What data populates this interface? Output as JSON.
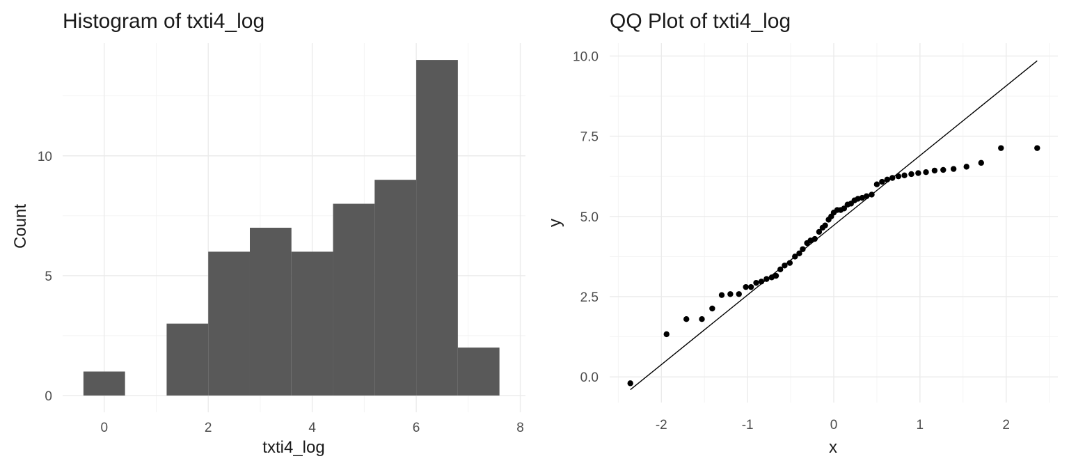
{
  "chart_data": [
    {
      "type": "bar",
      "title": "Histogram of txti4_log",
      "xlabel": "txti4_log",
      "ylabel": "Count",
      "bar_color": "#595959",
      "bins": [
        {
          "x0": -0.4,
          "x1": 0.4,
          "count": 1
        },
        {
          "x0": 1.2,
          "x1": 2.0,
          "count": 3
        },
        {
          "x0": 2.0,
          "x1": 2.8,
          "count": 6
        },
        {
          "x0": 2.8,
          "x1": 3.6,
          "count": 7
        },
        {
          "x0": 3.6,
          "x1": 4.4,
          "count": 6
        },
        {
          "x0": 4.4,
          "x1": 5.2,
          "count": 8
        },
        {
          "x0": 5.2,
          "x1": 6.0,
          "count": 9
        },
        {
          "x0": 6.0,
          "x1": 6.8,
          "count": 14
        },
        {
          "x0": 6.8,
          "x1": 7.6,
          "count": 2
        }
      ],
      "xlim": [
        -0.8,
        8.1
      ],
      "ylim": [
        -0.7,
        14.7
      ],
      "x_ticks": [
        0,
        2,
        4,
        6,
        8
      ],
      "y_ticks": [
        0,
        5,
        10
      ],
      "grid": true
    },
    {
      "type": "scatter",
      "title": "QQ Plot of txti4_log",
      "xlabel": "x",
      "ylabel": "y",
      "point_color": "#000000",
      "points": [
        [
          -2.36,
          -0.2
        ],
        [
          -1.94,
          1.33
        ],
        [
          -1.71,
          1.8
        ],
        [
          -1.53,
          1.8
        ],
        [
          -1.41,
          2.13
        ],
        [
          -1.3,
          2.55
        ],
        [
          -1.2,
          2.58
        ],
        [
          -1.1,
          2.58
        ],
        [
          -1.02,
          2.8
        ],
        [
          -0.96,
          2.8
        ],
        [
          -0.9,
          2.93
        ],
        [
          -0.84,
          2.97
        ],
        [
          -0.78,
          3.05
        ],
        [
          -0.72,
          3.1
        ],
        [
          -0.67,
          3.15
        ],
        [
          -0.62,
          3.35
        ],
        [
          -0.57,
          3.47
        ],
        [
          -0.51,
          3.55
        ],
        [
          -0.45,
          3.75
        ],
        [
          -0.4,
          3.85
        ],
        [
          -0.36,
          3.98
        ],
        [
          -0.31,
          4.17
        ],
        [
          -0.27,
          4.25
        ],
        [
          -0.22,
          4.3
        ],
        [
          -0.17,
          4.52
        ],
        [
          -0.13,
          4.65
        ],
        [
          -0.1,
          4.72
        ],
        [
          -0.06,
          4.9
        ],
        [
          -0.03,
          5.0
        ],
        [
          0.0,
          5.12
        ],
        [
          0.04,
          5.2
        ],
        [
          0.08,
          5.2
        ],
        [
          0.12,
          5.25
        ],
        [
          0.16,
          5.37
        ],
        [
          0.2,
          5.4
        ],
        [
          0.24,
          5.5
        ],
        [
          0.28,
          5.55
        ],
        [
          0.33,
          5.58
        ],
        [
          0.38,
          5.63
        ],
        [
          0.44,
          5.68
        ],
        [
          0.5,
          6.0
        ],
        [
          0.56,
          6.08
        ],
        [
          0.62,
          6.15
        ],
        [
          0.68,
          6.2
        ],
        [
          0.75,
          6.25
        ],
        [
          0.82,
          6.28
        ],
        [
          0.9,
          6.32
        ],
        [
          0.98,
          6.35
        ],
        [
          1.07,
          6.38
        ],
        [
          1.17,
          6.43
        ],
        [
          1.27,
          6.45
        ],
        [
          1.39,
          6.48
        ],
        [
          1.54,
          6.55
        ],
        [
          1.71,
          6.67
        ],
        [
          1.94,
          7.13
        ],
        [
          2.36,
          7.13
        ]
      ],
      "reference_line": {
        "x": [
          -2.36,
          2.36
        ],
        "y": [
          -0.4,
          9.85
        ]
      },
      "xlim": [
        -2.6,
        2.6
      ],
      "ylim": [
        -0.8,
        10.4
      ],
      "x_ticks": [
        -2,
        -1,
        0,
        1,
        2
      ],
      "y_ticks": [
        "0.0",
        "2.5",
        "5.0",
        "7.5",
        "10.0"
      ],
      "grid": true
    }
  ]
}
